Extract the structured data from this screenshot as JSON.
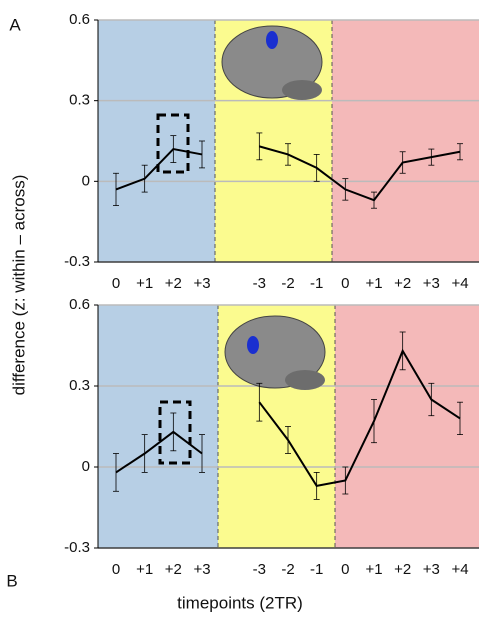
{
  "chart_data": [
    {
      "type": "line",
      "panel_label": "A",
      "categories": [
        "0",
        "+1",
        "+2",
        "+3",
        null,
        "-3",
        "-2",
        "-1",
        "0",
        "+1",
        "+2",
        "+3",
        "+4"
      ],
      "values": [
        -0.03,
        0.01,
        0.12,
        0.1,
        null,
        0.13,
        0.1,
        0.05,
        -0.03,
        -0.07,
        0.07,
        0.09,
        0.11
      ],
      "errors": [
        0.06,
        0.05,
        0.05,
        0.05,
        null,
        0.05,
        0.04,
        0.05,
        0.04,
        0.03,
        0.04,
        0.03,
        0.03
      ],
      "color": "#000000",
      "background_colors": [
        "#b7cfe5",
        "#fbfb8f",
        "#f4b9b9"
      ],
      "ylim": [
        -0.3,
        0.6
      ],
      "yticks": [
        -0.3,
        0,
        0.3,
        0.6
      ],
      "grid": true
    },
    {
      "type": "line",
      "panel_label": "B",
      "categories": [
        "0",
        "+1",
        "+2",
        "+3",
        null,
        "-3",
        "-2",
        "-1",
        "0",
        "+1",
        "+2",
        "+3",
        "+4"
      ],
      "values": [
        -0.02,
        0.05,
        0.13,
        0.05,
        null,
        0.24,
        0.1,
        -0.07,
        -0.05,
        0.17,
        0.43,
        0.25,
        0.18
      ],
      "errors": [
        0.07,
        0.07,
        0.07,
        0.07,
        null,
        0.07,
        0.05,
        0.05,
        0.05,
        0.08,
        0.07,
        0.06,
        0.06
      ],
      "color": "#000000",
      "background_colors": [
        "#b7cfe5",
        "#fbfb8f",
        "#f4b9b9"
      ],
      "ylim": [
        -0.3,
        0.6
      ],
      "yticks": [
        -0.3,
        0,
        0.3,
        0.6
      ],
      "grid": true
    }
  ],
  "ylabel": "difference (z: within – across)",
  "xlabel": "timepoints (2TR)"
}
